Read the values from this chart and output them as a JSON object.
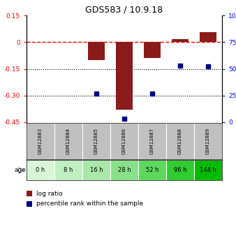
{
  "title": "GDS583 / 10.9.18",
  "samples": [
    "GSM12883",
    "GSM12884",
    "GSM12885",
    "GSM12886",
    "GSM12887",
    "GSM12888",
    "GSM12889"
  ],
  "ages": [
    "0 h",
    "8 h",
    "16 h",
    "28 h",
    "52 h",
    "96 h",
    "144 h"
  ],
  "log_ratio": [
    0.0,
    0.0,
    -0.1,
    -0.38,
    -0.09,
    0.015,
    0.055
  ],
  "percentile_rank": [
    null,
    null,
    27,
    3,
    27,
    53,
    52
  ],
  "ylim_left": [
    -0.45,
    0.15
  ],
  "ylim_right": [
    0,
    100
  ],
  "yticks_left": [
    0.15,
    0.0,
    -0.15,
    -0.3,
    -0.45
  ],
  "ytick_labels_left": [
    "0.15",
    "0",
    "-0.15",
    "-0.30",
    "-0.45"
  ],
  "yticks_right": [
    100,
    75,
    50,
    25,
    0
  ],
  "ytick_labels_right": [
    "100%",
    "75",
    "50",
    "25",
    "0"
  ],
  "bar_color": "#8B1A1A",
  "dot_color": "#00008B",
  "sample_bg_color": "#c0c0c0",
  "age_colors": [
    "#d8f5d8",
    "#c0f0c0",
    "#a8e8a8",
    "#88e088",
    "#5cd85c",
    "#30cc30",
    "#00bb00"
  ],
  "legend_bar_label": "log ratio",
  "legend_dot_label": "percentile rank within the sample",
  "hline0_color": "red",
  "hline_minus15_color": "black",
  "hline_minus30_color": "black"
}
